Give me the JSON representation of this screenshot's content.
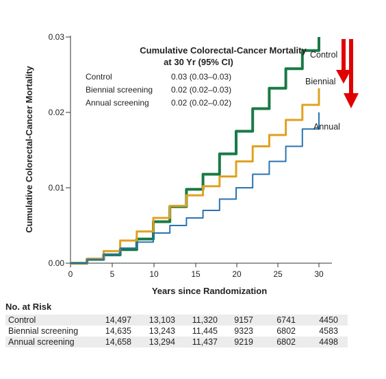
{
  "chart_data": {
    "type": "line",
    "xlabel": "Years since Randomization",
    "ylabel": "Cumulative Colorectal-Cancer Mortality",
    "xlim": [
      0,
      30
    ],
    "ylim": [
      0,
      0.03
    ],
    "x_ticks": [
      "0",
      "5",
      "10",
      "15",
      "20",
      "25",
      "30"
    ],
    "y_ticks": [
      "0.00",
      "0.01",
      "0.02",
      "0.03"
    ],
    "legend_box": {
      "title_line1": "Cumulative Colorectal-Cancer Mortality",
      "title_line2": "at 30 Yr (95% CI)",
      "entries": [
        {
          "label": "Control",
          "value": "0.03 (0.03–0.03)"
        },
        {
          "label": "Biennial screening",
          "value": "0.02 (0.02–0.03)"
        },
        {
          "label": "Annual screening",
          "value": "0.02 (0.02–0.02)"
        }
      ]
    },
    "series": [
      {
        "name": "Control",
        "color": "#1a7a45",
        "x": [
          0,
          2,
          4,
          6,
          8,
          10,
          12,
          14,
          16,
          18,
          20,
          22,
          24,
          26,
          28,
          30
        ],
        "y": [
          0,
          0.0005,
          0.0011,
          0.0018,
          0.0032,
          0.0055,
          0.0075,
          0.0098,
          0.0118,
          0.0145,
          0.0175,
          0.0205,
          0.0232,
          0.0258,
          0.0282,
          0.03
        ]
      },
      {
        "name": "Biennial",
        "color": "#e0a020",
        "x": [
          0,
          2,
          4,
          6,
          8,
          10,
          12,
          14,
          16,
          18,
          20,
          22,
          24,
          26,
          28,
          30
        ],
        "y": [
          0,
          0.0006,
          0.0016,
          0.003,
          0.0042,
          0.006,
          0.0076,
          0.009,
          0.0102,
          0.0115,
          0.0135,
          0.0155,
          0.017,
          0.019,
          0.021,
          0.0232
        ]
      },
      {
        "name": "Annual",
        "color": "#2a73b0",
        "x": [
          0,
          2,
          4,
          6,
          8,
          10,
          12,
          14,
          16,
          18,
          20,
          22,
          24,
          26,
          28,
          30
        ],
        "y": [
          0,
          0.0005,
          0.0012,
          0.002,
          0.0028,
          0.004,
          0.005,
          0.006,
          0.007,
          0.0085,
          0.01,
          0.0118,
          0.0135,
          0.0155,
          0.0178,
          0.02
        ]
      }
    ],
    "arrows": {
      "color": "#e00000",
      "count": 2,
      "direction": "down"
    }
  },
  "at_risk": {
    "title": "No. at Risk",
    "rows": [
      {
        "label": "Control",
        "values": [
          "14,497",
          "13,103",
          "11,320",
          "9157",
          "6741",
          "4450"
        ]
      },
      {
        "label": "Biennial screening",
        "values": [
          "14,635",
          "13,243",
          "11,445",
          "9323",
          "6802",
          "4583"
        ]
      },
      {
        "label": "Annual screening",
        "values": [
          "14,658",
          "13,294",
          "11,437",
          "9219",
          "6802",
          "4498"
        ]
      }
    ]
  }
}
